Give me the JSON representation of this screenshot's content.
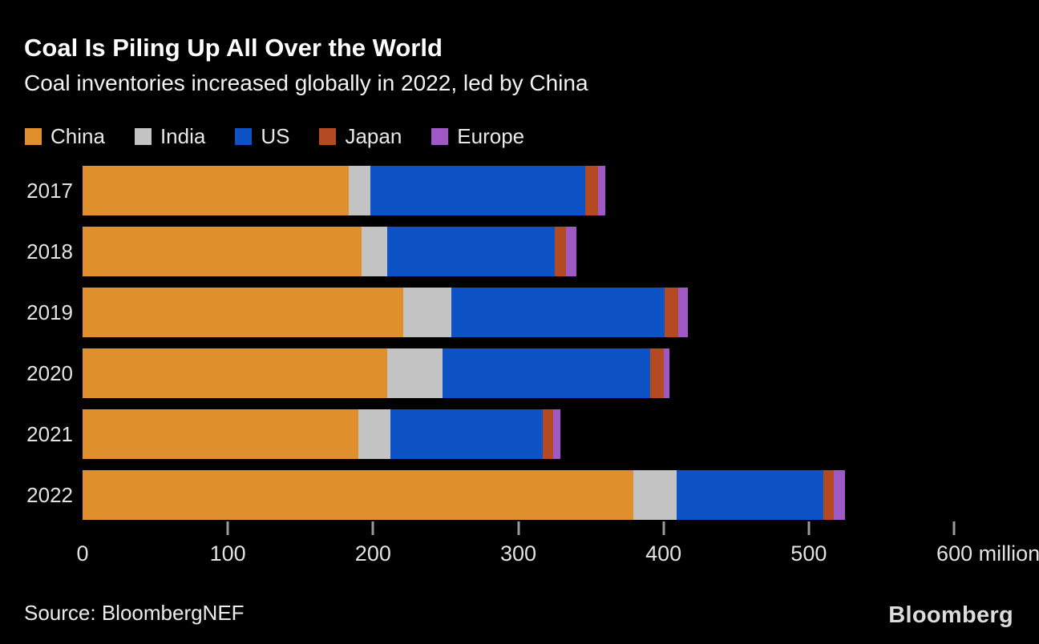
{
  "header": {
    "title": "Coal Is Piling Up All Over the World",
    "subtitle": "Coal inventories increased globally in 2022, led by China"
  },
  "chart_data": {
    "type": "bar",
    "orientation": "horizontal-stacked",
    "title": "Coal Is Piling Up All Over the World",
    "subtitle": "Coal inventories increased globally in 2022, led by China",
    "categories": [
      "2017",
      "2018",
      "2019",
      "2020",
      "2021",
      "2022"
    ],
    "series": [
      {
        "name": "China",
        "color": "#DF8F2C",
        "values": [
          183,
          192,
          221,
          210,
          190,
          379
        ]
      },
      {
        "name": "India",
        "color": "#C3C3C3",
        "values": [
          15,
          18,
          33,
          38,
          22,
          30
        ]
      },
      {
        "name": "US",
        "color": "#0E53C6",
        "values": [
          148,
          115,
          147,
          143,
          105,
          101
        ]
      },
      {
        "name": "Japan",
        "color": "#B34A21",
        "values": [
          9,
          8,
          9,
          9,
          7,
          7
        ]
      },
      {
        "name": "Europe",
        "color": "#9E59C4",
        "values": [
          5,
          7,
          7,
          4,
          5,
          8
        ]
      }
    ],
    "totals": [
      360,
      340,
      417,
      404,
      329,
      525
    ],
    "xlabel": "million tons",
    "ylabel": "",
    "xlim": [
      0,
      600
    ],
    "axis": {
      "min": 0,
      "max": 600,
      "tick_step": 100,
      "tick_labels": [
        "0",
        "100",
        "200",
        "300",
        "400",
        "500",
        "600"
      ],
      "unit": "million tons"
    },
    "grid": false,
    "legend_position": "top"
  },
  "footer": {
    "source": "Source: BloombergNEF",
    "logo": "Bloomberg"
  }
}
